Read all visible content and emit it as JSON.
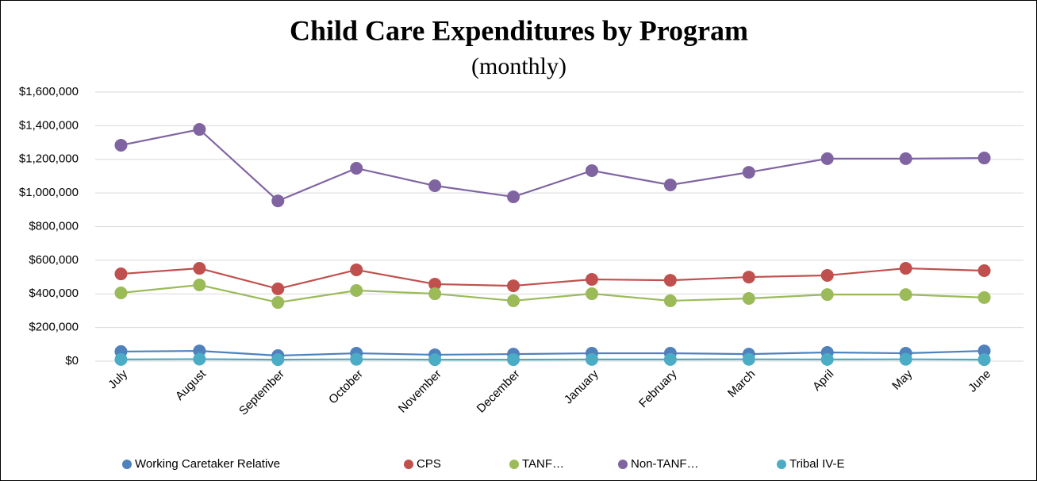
{
  "chart_data": {
    "type": "line",
    "title": "Child Care Expenditures by Program",
    "subtitle": "(monthly)",
    "categories": [
      "July",
      "August",
      "September",
      "October",
      "November",
      "December",
      "January",
      "February",
      "March",
      "April",
      "May",
      "June"
    ],
    "series": [
      {
        "name": "Working Caretaker Relative",
        "color": "#4f81bd",
        "values": [
          57000,
          61000,
          33000,
          47000,
          38000,
          42000,
          47000,
          47000,
          42000,
          52000,
          47000,
          61000
        ]
      },
      {
        "name": "CPS",
        "color": "#c0504d",
        "values": [
          519000,
          552000,
          430000,
          543000,
          458000,
          448000,
          486000,
          481000,
          500000,
          510000,
          552000,
          538000
        ]
      },
      {
        "name": "TANF…",
        "color": "#9bbb59",
        "values": [
          406000,
          453000,
          349000,
          420000,
          401000,
          359000,
          401000,
          359000,
          373000,
          396000,
          396000,
          378000
        ]
      },
      {
        "name": "Non-TANF…",
        "color": "#8064a2",
        "values": [
          1284000,
          1378000,
          953000,
          1147000,
          1043000,
          977000,
          1133000,
          1048000,
          1123000,
          1204000,
          1204000,
          1208000
        ]
      },
      {
        "name": "Tribal IV-E",
        "color": "#4bacc6",
        "values": [
          10000,
          12000,
          9000,
          11000,
          9000,
          9000,
          10000,
          10000,
          11000,
          10000,
          11000,
          9000
        ]
      }
    ],
    "ylim": [
      0,
      1600000
    ],
    "yticks": [
      {
        "value": 0,
        "label": "$0"
      },
      {
        "value": 200000,
        "label": "$200,000"
      },
      {
        "value": 400000,
        "label": "$400,000"
      },
      {
        "value": 600000,
        "label": "$600,000"
      },
      {
        "value": 800000,
        "label": "$800,000"
      },
      {
        "value": 1000000,
        "label": "$1,000,000"
      },
      {
        "value": 1200000,
        "label": "$1,200,000"
      },
      {
        "value": 1400000,
        "label": "$1,400,000"
      },
      {
        "value": 1600000,
        "label": "$1,600,000"
      }
    ],
    "grid": true,
    "legend": "bottom"
  }
}
